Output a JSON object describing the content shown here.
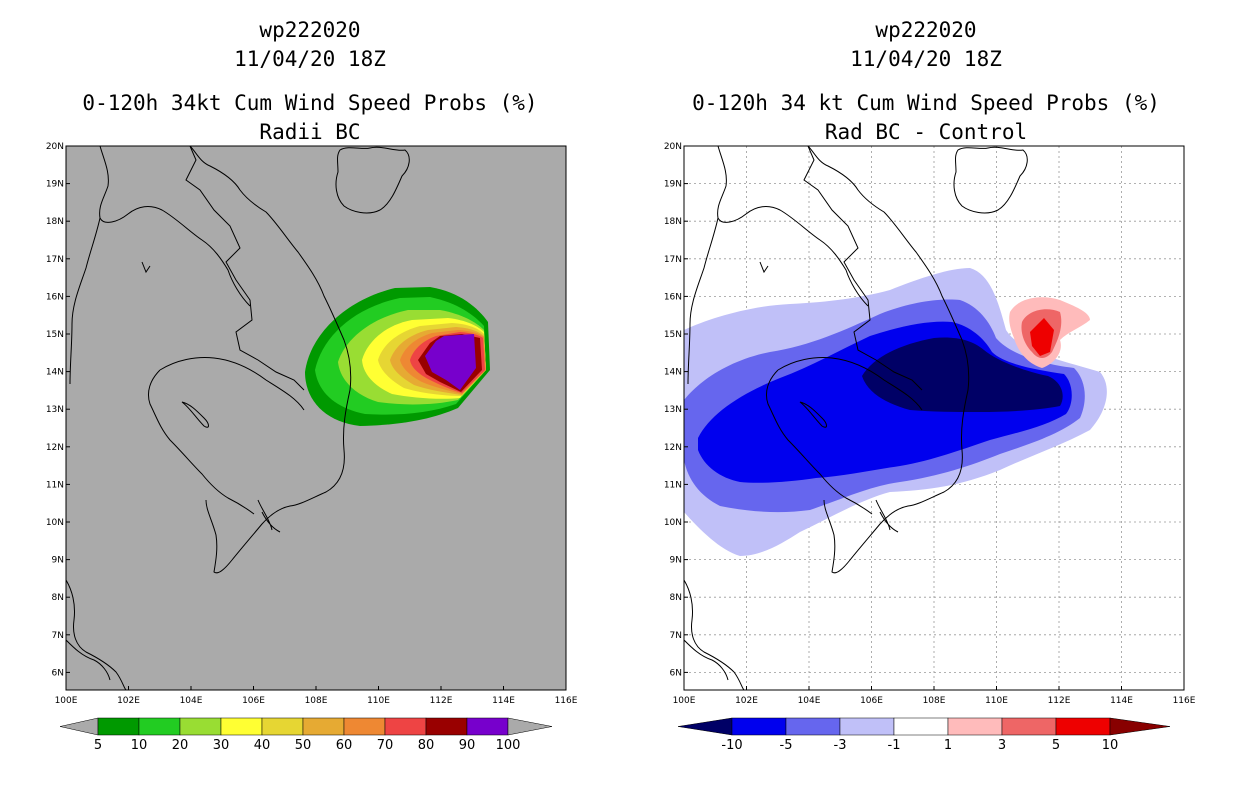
{
  "left_panel": {
    "title_line1": "wp222020",
    "title_line2": "11/04/20 18Z",
    "title_line3": "0-120h 34kt Cum Wind Speed Probs (%)",
    "title_line4": "Radii BC",
    "lat_labels": [
      "20N",
      "19N",
      "18N",
      "17N",
      "16N",
      "15N",
      "14N",
      "13N",
      "12N",
      "11N",
      "10N",
      "9N",
      "8N",
      "7N",
      "6N"
    ],
    "lon_labels": [
      "100E",
      "102E",
      "104E",
      "106E",
      "108E",
      "110E",
      "112E",
      "114E",
      "116E"
    ],
    "colorbar_labels": [
      "5",
      "10",
      "20",
      "30",
      "40",
      "50",
      "60",
      "70",
      "80",
      "90",
      "100"
    ],
    "colorbar_colors": [
      "#009900",
      "#22cc22",
      "#99dd33",
      "#ffff33",
      "#e6d633",
      "#e6aa33",
      "#ee8833",
      "#ee4444",
      "#990000",
      "#7700cc"
    ],
    "background_color": "#aaaaaa"
  },
  "right_panel": {
    "title_line1": "wp222020",
    "title_line2": "11/04/20 18Z",
    "title_line3": "0-120h 34 kt Cum Wind Speed Probs (%)",
    "title_line4": "Rad BC - Control",
    "lat_labels": [
      "20N",
      "19N",
      "18N",
      "17N",
      "16N",
      "15N",
      "14N",
      "13N",
      "12N",
      "11N",
      "10N",
      "9N",
      "8N",
      "7N",
      "6N"
    ],
    "lon_labels": [
      "100E",
      "102E",
      "104E",
      "106E",
      "108E",
      "110E",
      "112E",
      "114E",
      "116E"
    ],
    "colorbar_labels": [
      "-10",
      "-5",
      "-3",
      "-1",
      "1",
      "3",
      "5",
      "10"
    ],
    "colorbar_colors": [
      "#000066",
      "#0000ee",
      "#6666ee",
      "#c0c0f8",
      "#ffffff",
      "#ffbbbb",
      "#ee6666",
      "#ee0000",
      "#880000"
    ]
  }
}
